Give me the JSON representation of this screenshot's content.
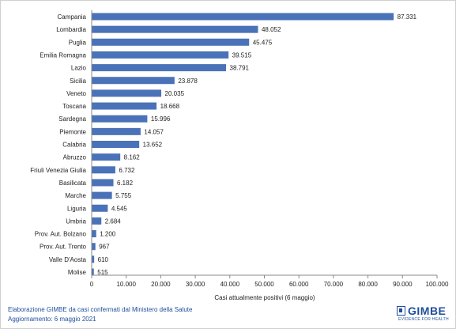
{
  "chart_data": {
    "type": "bar",
    "orientation": "horizontal",
    "categories": [
      "Campania",
      "Lombardia",
      "Puglia",
      "Emilia Romagna",
      "Lazio",
      "Sicilia",
      "Veneto",
      "Toscana",
      "Sardegna",
      "Piemonte",
      "Calabria",
      "Abruzzo",
      "Friuli Venezia Giulia",
      "Basilicata",
      "Marche",
      "Liguria",
      "Umbria",
      "Prov. Aut. Bolzano",
      "Prov. Aut. Trento",
      "Valle D'Aosta",
      "Molise"
    ],
    "values": [
      87331,
      48052,
      45475,
      39515,
      38791,
      23878,
      20035,
      18668,
      15996,
      14057,
      13652,
      8162,
      6732,
      6182,
      5755,
      4545,
      2684,
      1200,
      967,
      610,
      515
    ],
    "value_labels": [
      "87.331",
      "48.052",
      "45.475",
      "39.515",
      "38.791",
      "23.878",
      "20.035",
      "18.668",
      "15.996",
      "14.057",
      "13.652",
      "8.162",
      "6.732",
      "6.182",
      "5.755",
      "4.545",
      "2.684",
      "1.200",
      "967",
      "610",
      "515"
    ],
    "xlim": [
      0,
      100000
    ],
    "xticks": [
      0,
      10000,
      20000,
      30000,
      40000,
      50000,
      60000,
      70000,
      80000,
      90000,
      100000
    ],
    "xtick_labels": [
      "0",
      "10.000",
      "20.000",
      "30.000",
      "40.000",
      "50.000",
      "60.000",
      "70.000",
      "80.000",
      "90.000",
      "100.000"
    ],
    "xlabel": "Casi attualmente positivi (6 maggio)",
    "grid": false,
    "bar_color": "#4a72b8"
  },
  "footer": {
    "source": "Elaborazione GIMBE da casi confermati dal Ministero della Salute",
    "updated": "Aggiornamento: 6 maggio 2021"
  },
  "logo": {
    "name": "GIMBE",
    "tagline": "EVIDENCE FOR HEALTH"
  }
}
